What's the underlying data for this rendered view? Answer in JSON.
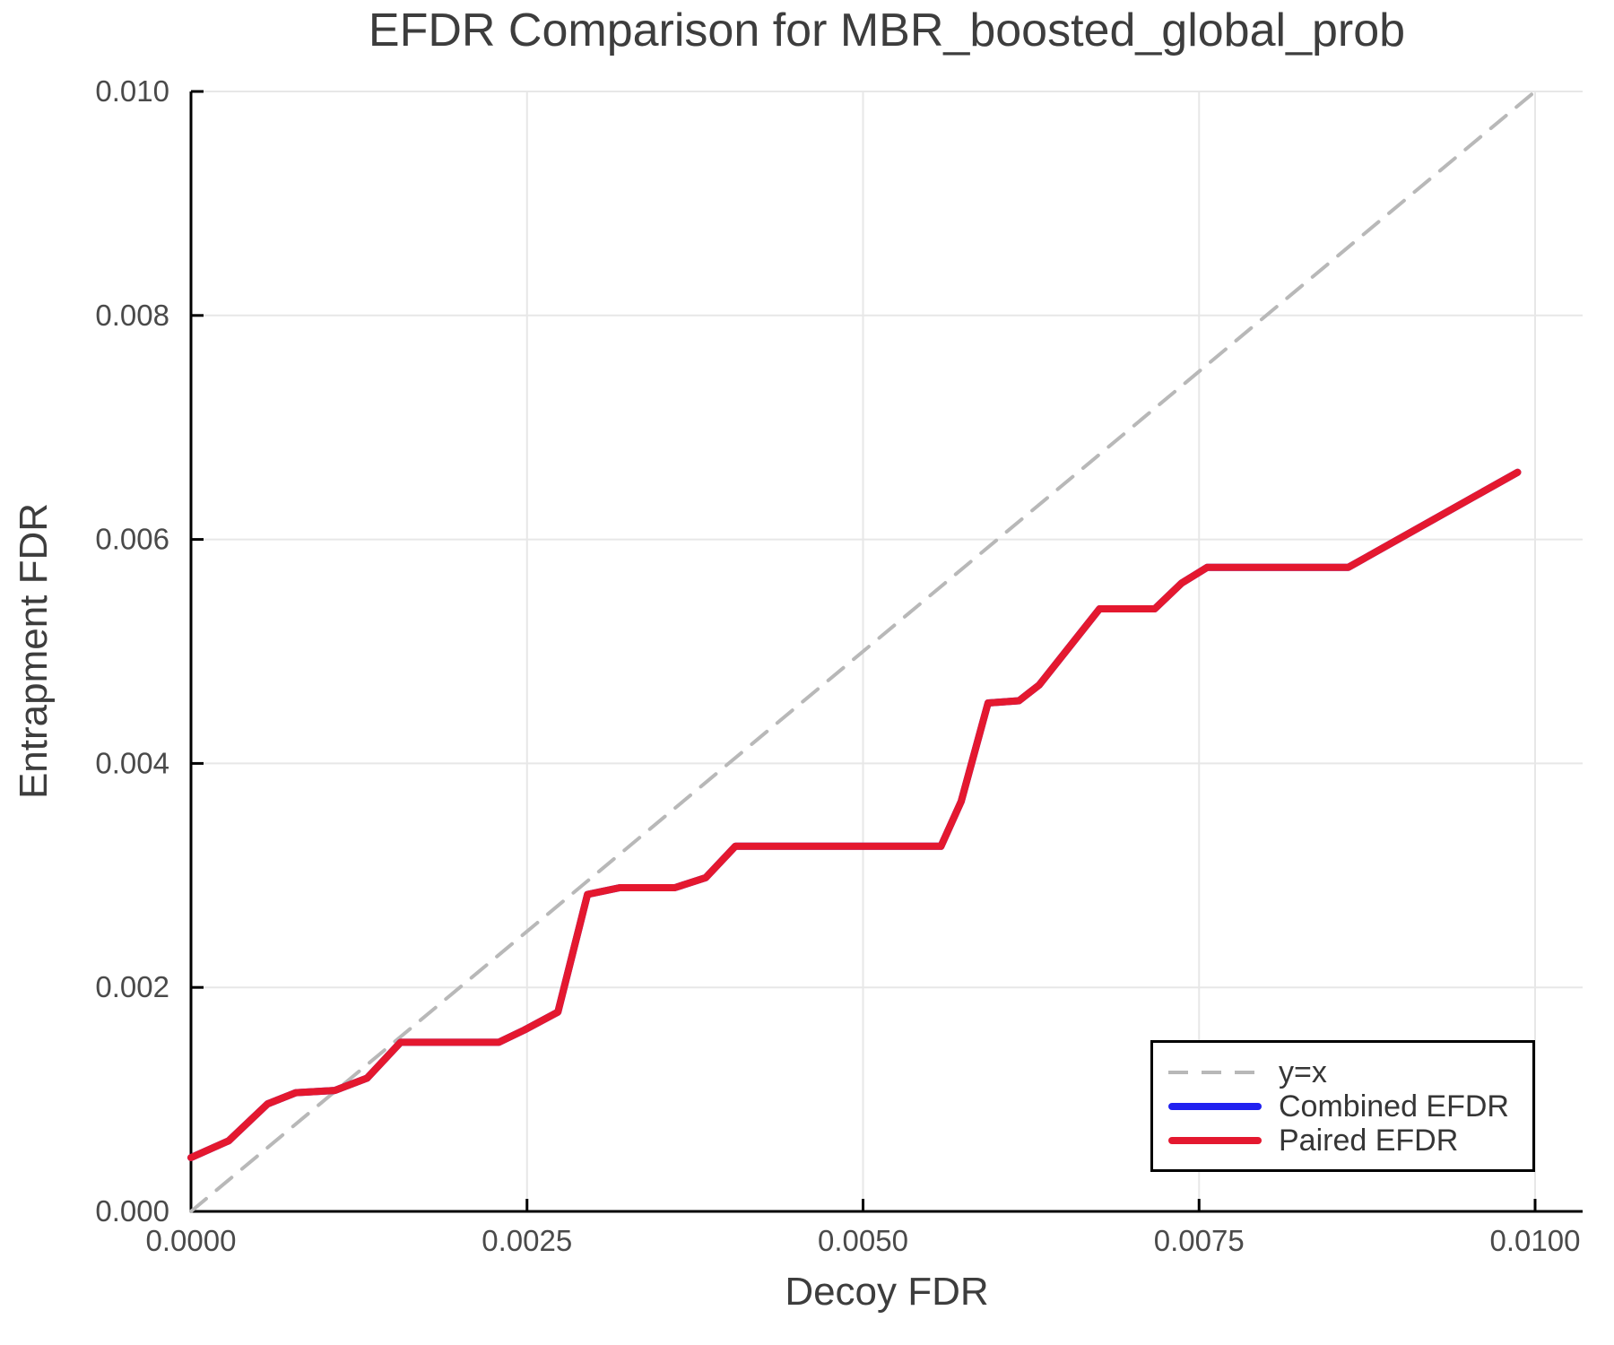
{
  "chart_data": {
    "type": "line",
    "title": "EFDR Comparison for MBR_boosted_global_prob",
    "xlabel": "Decoy FDR",
    "ylabel": "Entrapment FDR",
    "xlim": [
      0.0,
      0.01
    ],
    "ylim": [
      0.0,
      0.01
    ],
    "grid": true,
    "legend_position": "bottom-right",
    "x_ticks": {
      "values": [
        0.0,
        0.0025,
        0.005,
        0.0075,
        0.01
      ],
      "labels": [
        "0.0000",
        "0.0025",
        "0.0050",
        "0.0075",
        "0.0100"
      ]
    },
    "y_ticks": {
      "values": [
        0.0,
        0.002,
        0.004,
        0.006,
        0.008,
        0.01
      ],
      "labels": [
        "0.000",
        "0.002",
        "0.004",
        "0.006",
        "0.008",
        "0.010"
      ]
    },
    "series": [
      {
        "name": "y=x",
        "style": "dashed",
        "color": "#b8b8b8",
        "width": 4,
        "points": [
          [
            0.0,
            0.0
          ],
          [
            0.01,
            0.01
          ]
        ]
      },
      {
        "name": "Combined EFDR",
        "style": "solid",
        "color": "#2021f0",
        "width": 8,
        "points": [
          [
            0.0,
            0.00048
          ],
          [
            0.00028,
            0.00063
          ],
          [
            0.00057,
            0.00096
          ],
          [
            0.00078,
            0.00106
          ],
          [
            0.00107,
            0.00108
          ],
          [
            0.00131,
            0.00119
          ],
          [
            0.00156,
            0.00151
          ],
          [
            0.00229,
            0.00151
          ],
          [
            0.00248,
            0.00162
          ],
          [
            0.00273,
            0.00178
          ],
          [
            0.00295,
            0.00283
          ],
          [
            0.00319,
            0.00289
          ],
          [
            0.0036,
            0.00289
          ],
          [
            0.00383,
            0.00298
          ],
          [
            0.00405,
            0.00326
          ],
          [
            0.00558,
            0.00326
          ],
          [
            0.00573,
            0.00366
          ],
          [
            0.00593,
            0.00454
          ],
          [
            0.00616,
            0.00456
          ],
          [
            0.00631,
            0.0047
          ],
          [
            0.00676,
            0.00538
          ],
          [
            0.00717,
            0.00538
          ],
          [
            0.00737,
            0.00561
          ],
          [
            0.00756,
            0.00575
          ],
          [
            0.00861,
            0.00575
          ],
          [
            0.00987,
            0.0066
          ]
        ]
      },
      {
        "name": "Paired EFDR",
        "style": "solid",
        "color": "#e4182f",
        "width": 8,
        "points": [
          [
            0.0,
            0.00048
          ],
          [
            0.00028,
            0.00063
          ],
          [
            0.00057,
            0.00096
          ],
          [
            0.00078,
            0.00106
          ],
          [
            0.00107,
            0.00108
          ],
          [
            0.00131,
            0.00119
          ],
          [
            0.00156,
            0.00151
          ],
          [
            0.00229,
            0.00151
          ],
          [
            0.00248,
            0.00162
          ],
          [
            0.00273,
            0.00178
          ],
          [
            0.00295,
            0.00283
          ],
          [
            0.00319,
            0.00289
          ],
          [
            0.0036,
            0.00289
          ],
          [
            0.00383,
            0.00298
          ],
          [
            0.00405,
            0.00326
          ],
          [
            0.00558,
            0.00326
          ],
          [
            0.00573,
            0.00366
          ],
          [
            0.00593,
            0.00454
          ],
          [
            0.00616,
            0.00456
          ],
          [
            0.00631,
            0.0047
          ],
          [
            0.00676,
            0.00538
          ],
          [
            0.00717,
            0.00538
          ],
          [
            0.00737,
            0.00561
          ],
          [
            0.00756,
            0.00575
          ],
          [
            0.00861,
            0.00575
          ],
          [
            0.00987,
            0.0066
          ]
        ]
      }
    ],
    "colors": {
      "grid": "#e7e7e7",
      "spine": "#000000",
      "tick_label": "#4a4a4a",
      "title_text": "#3d3d3d",
      "legend_border": "#000000",
      "legend_background": "#ffffff"
    }
  }
}
